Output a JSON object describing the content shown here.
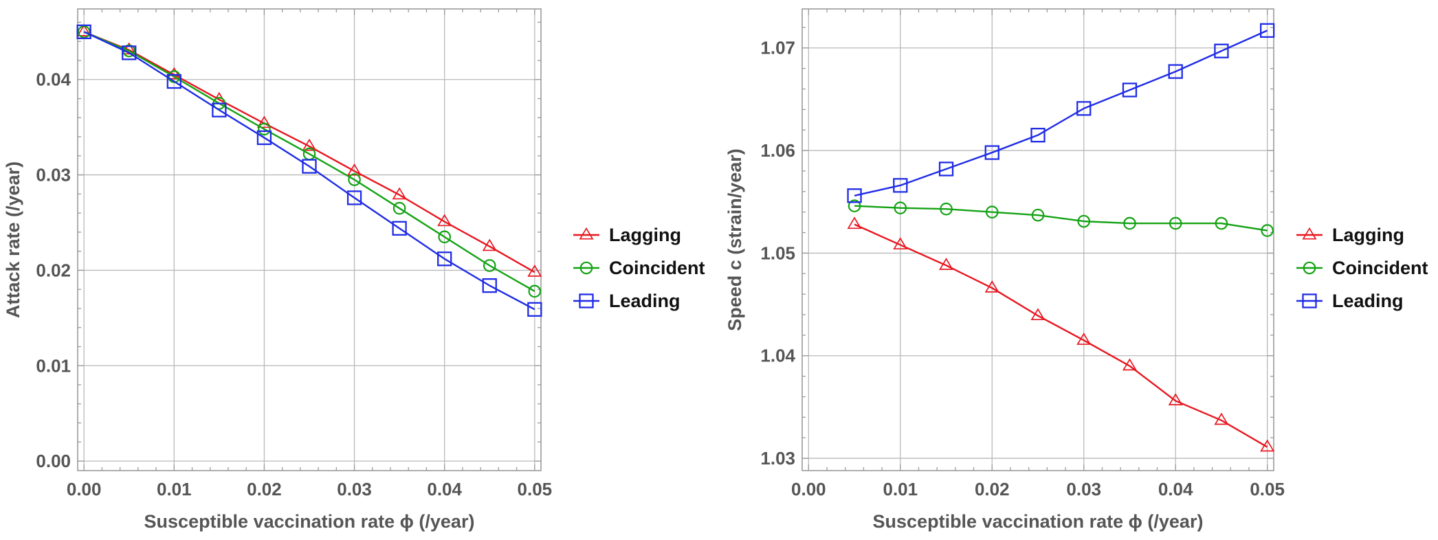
{
  "colors": {
    "Lagging": "#e8161f",
    "Coincident": "#14a214",
    "Leading": "#1f2be6",
    "axis_text": "#555555",
    "grid": "#b9b9b9",
    "frame": "#9a9a9a"
  },
  "chart_data": [
    {
      "type": "line",
      "title": "",
      "xlabel": "Susceptible  vaccination  rate ϕ (/year)",
      "ylabel": "Attack rate (/year)",
      "xlim": [
        -0.0007,
        0.0507
      ],
      "ylim": [
        -0.001,
        0.0474
      ],
      "xticks": [
        0.0,
        0.01,
        0.02,
        0.03,
        0.04,
        0.05
      ],
      "xtick_labels": [
        "0.00",
        "0.01",
        "0.02",
        "0.03",
        "0.04",
        "0.05"
      ],
      "yticks": [
        0.0,
        0.01,
        0.02,
        0.03,
        0.04
      ],
      "ytick_labels": [
        "0.00",
        "0.01",
        "0.02",
        "0.03",
        "0.04"
      ],
      "grid": true,
      "legend": "right-outside",
      "x": [
        0.0,
        0.005,
        0.01,
        0.015,
        0.02,
        0.025,
        0.03,
        0.035,
        0.04,
        0.045,
        0.05
      ],
      "series": [
        {
          "name": "Lagging",
          "marker": "triangle",
          "values": [
            0.045,
            0.0431,
            0.0405,
            0.0379,
            0.0354,
            0.033,
            0.0304,
            0.0279,
            0.0251,
            0.0225,
            0.0198
          ]
        },
        {
          "name": "Coincident",
          "marker": "circle",
          "values": [
            0.045,
            0.043,
            0.0403,
            0.0375,
            0.0348,
            0.0322,
            0.0295,
            0.0265,
            0.0235,
            0.0205,
            0.0178
          ]
        },
        {
          "name": "Leading",
          "marker": "square",
          "values": [
            0.045,
            0.0428,
            0.0398,
            0.0368,
            0.0339,
            0.0309,
            0.0276,
            0.0244,
            0.0212,
            0.0184,
            0.0159
          ]
        }
      ]
    },
    {
      "type": "line",
      "title": "",
      "xlabel": "Susceptible  vaccination  rate ϕ (/year)",
      "ylabel": "Speed  c (strain/year)",
      "xlim": [
        -0.0007,
        0.0507
      ],
      "ylim": [
        1.0288,
        1.0738
      ],
      "xticks": [
        0.0,
        0.01,
        0.02,
        0.03,
        0.04,
        0.05
      ],
      "xtick_labels": [
        "0.00",
        "0.01",
        "0.02",
        "0.03",
        "0.04",
        "0.05"
      ],
      "yticks": [
        1.03,
        1.04,
        1.05,
        1.06,
        1.07
      ],
      "ytick_labels": [
        "1.03",
        "1.04",
        "1.05",
        "1.06",
        "1.07"
      ],
      "grid": true,
      "legend": "right-outside",
      "x": [
        0.005,
        0.01,
        0.015,
        0.02,
        0.025,
        0.03,
        0.035,
        0.04,
        0.045,
        0.05
      ],
      "series": [
        {
          "name": "Lagging",
          "marker": "triangle",
          "values": [
            1.0528,
            1.0508,
            1.0488,
            1.0466,
            1.0439,
            1.0415,
            1.039,
            1.0356,
            1.0337,
            1.0311
          ]
        },
        {
          "name": "Coincident",
          "marker": "circle",
          "values": [
            1.0546,
            1.0544,
            1.0543,
            1.054,
            1.0537,
            1.0531,
            1.0529,
            1.0529,
            1.0529,
            1.0522
          ]
        },
        {
          "name": "Leading",
          "marker": "square",
          "values": [
            1.0556,
            1.0566,
            1.0582,
            1.0598,
            1.0615,
            1.0641,
            1.0659,
            1.0677,
            1.0697,
            1.0717
          ]
        }
      ]
    }
  ]
}
